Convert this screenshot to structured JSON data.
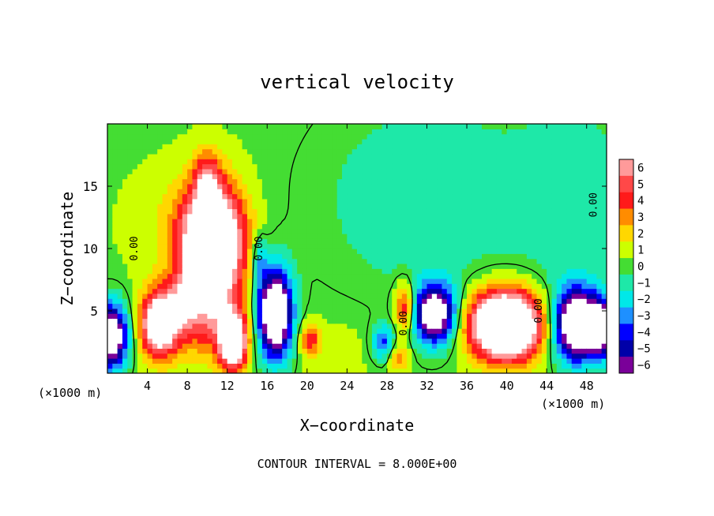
{
  "chart_data": {
    "type": "heatmap",
    "title": "vertical velocity",
    "xlabel": "X−coordinate",
    "ylabel": "Z−coordinate",
    "x_units": "(×1000 m)",
    "x_units_right": "(×1000 m)",
    "xlim": [
      0,
      50
    ],
    "ylim": [
      0,
      20
    ],
    "x_ticks": [
      4,
      8,
      12,
      16,
      20,
      24,
      28,
      32,
      36,
      40,
      44,
      48
    ],
    "x_tick_labels": [
      "4",
      "8",
      "12",
      "16",
      "20",
      "24",
      "28",
      "32",
      "36",
      "40",
      "44",
      "48"
    ],
    "y_ticks": [
      5,
      10,
      15
    ],
    "y_tick_labels": [
      "5",
      "10",
      "15"
    ],
    "colorbar": {
      "levels": [
        6,
        5,
        4,
        3,
        2,
        1,
        0,
        -1,
        -2,
        -3,
        -4,
        -5,
        -6
      ],
      "labels": [
        "6",
        "5",
        "4",
        "3",
        "2",
        "1",
        "0",
        "−1",
        "−2",
        "−3",
        "−4",
        "−5",
        "−6"
      ],
      "colors": [
        "#ff9a9a",
        "#ff4848",
        "#ff1a1a",
        "#ff8c00",
        "#ffd700",
        "#ccff00",
        "#44dd33",
        "#1ee8a8",
        "#00e8e8",
        "#1e90ff",
        "#0000ff",
        "#0000a8",
        "#7a0099"
      ]
    },
    "background_color": "#3fe33f",
    "saturated_high_color": "#ffffff",
    "contour_label": "0.00",
    "contour_interval_text": "CONTOUR INTERVAL = 8.000E+00",
    "features": [
      {
        "x": 10.5,
        "z": 10.5,
        "sx": 2.2,
        "sz": 3.2,
        "w": 12
      },
      {
        "x": 10.0,
        "z": 15.5,
        "sx": 0.9,
        "sz": 1.6,
        "w": 4
      },
      {
        "x": 9.5,
        "z": 5.0,
        "sx": 2.2,
        "sz": 2.6,
        "w": 4
      },
      {
        "x": 12.6,
        "z": 2.6,
        "sx": 1.0,
        "sz": 1.6,
        "w": 10
      },
      {
        "x": 5.2,
        "z": 4.0,
        "sx": 1.3,
        "sz": 1.8,
        "w": 10
      },
      {
        "x": 7.5,
        "z": 5.5,
        "sx": 0.8,
        "sz": 1.3,
        "w": 3
      },
      {
        "x": 0.3,
        "z": 3.0,
        "sx": 1.2,
        "sz": 1.8,
        "w": -10
      },
      {
        "x": 16.8,
        "z": 4.8,
        "sx": 1.2,
        "sz": 2.5,
        "w": -11
      },
      {
        "x": 15.2,
        "z": 9.0,
        "sx": 0.5,
        "sz": 1.5,
        "w": -3
      },
      {
        "x": 20.3,
        "z": 2.7,
        "sx": 0.7,
        "sz": 0.9,
        "w": 4
      },
      {
        "x": 29.8,
        "z": 5.3,
        "sx": 0.7,
        "sz": 1.4,
        "w": 5
      },
      {
        "x": 29.2,
        "z": 1.3,
        "sx": 0.7,
        "sz": 0.8,
        "w": 3
      },
      {
        "x": 32.8,
        "z": 4.8,
        "sx": 1.5,
        "sz": 1.7,
        "w": -9
      },
      {
        "x": 27.6,
        "z": 2.5,
        "sx": 0.8,
        "sz": 1.0,
        "w": -4
      },
      {
        "x": 39.9,
        "z": 3.9,
        "sx": 2.5,
        "sz": 1.9,
        "w": 14
      },
      {
        "x": 47.0,
        "z": 3.9,
        "sx": 1.6,
        "sz": 2.0,
        "w": -11
      },
      {
        "x": 49.6,
        "z": 3.6,
        "sx": 0.9,
        "sz": 1.6,
        "w": -7
      },
      {
        "x": 32.0,
        "z": 14.0,
        "sx": 8.0,
        "sz": 6.0,
        "w": -1.6
      },
      {
        "x": 47.0,
        "z": 14.0,
        "sx": 4.0,
        "sz": 6.0,
        "w": -1.4
      },
      {
        "x": 23.0,
        "z": 2.0,
        "sx": 3.0,
        "sz": 2.0,
        "w": 0.6
      },
      {
        "x": 6.0,
        "z": 12.0,
        "sx": 3.0,
        "sz": 3.0,
        "w": 0.8
      }
    ]
  }
}
